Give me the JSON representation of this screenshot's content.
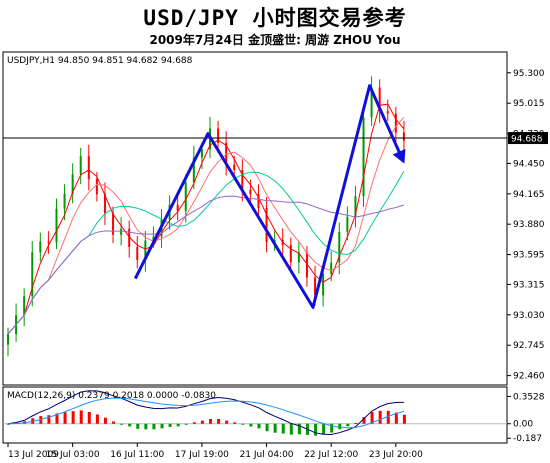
{
  "banner": {
    "title": "USD/JPY 小时图交易参考",
    "subtitle": "2009年7月24日    金顶盛世: 周游 ZHOU You"
  },
  "colors": {
    "bull": "#009900",
    "bear": "#ff0000",
    "ma_fast": "#ff0000",
    "ma_mid": "#ff7070",
    "ma_slow": "#00cc99",
    "ma_long": "#9966cc",
    "trend": "#1010dd",
    "macd_main": "#000080",
    "macd_signal": "#1e90ff",
    "current_line": "#000000"
  },
  "chart_data": [
    {
      "type": "candlestick",
      "header": "USDJPY,H1  94.850 94.851 94.682 94.688",
      "ylim": [
        92.4,
        95.42
      ],
      "y_ticks": [
        "95.300",
        "95.015",
        "94.730",
        "94.450",
        "94.165",
        "93.880",
        "93.595",
        "93.315",
        "93.030",
        "92.745",
        "92.460"
      ],
      "x_ticks": [
        "13 Jul 2009",
        "15 Jul 03:00",
        "16 Jul 11:00",
        "17 Jul 19:00",
        "21 Jul 04:00",
        "22 Jul 12:00",
        "23 Jul 20:00"
      ],
      "current_price": "94.688",
      "trend_path": [
        {
          "x": 16,
          "price": 93.37
        },
        {
          "x": 25,
          "price": 94.73
        },
        {
          "x": 38,
          "price": 93.1
        },
        {
          "x": 45,
          "price": 95.18
        },
        {
          "x": 49,
          "price": 94.5
        }
      ]
    },
    {
      "type": "bar",
      "header": "MACD(12,26,9) 0.2379 0.2018 0.0000 -0.0830",
      "ylim": [
        -0.21,
        0.41
      ],
      "y_ticks": [
        "0.3528",
        "0.00",
        "-0.187"
      ]
    }
  ]
}
